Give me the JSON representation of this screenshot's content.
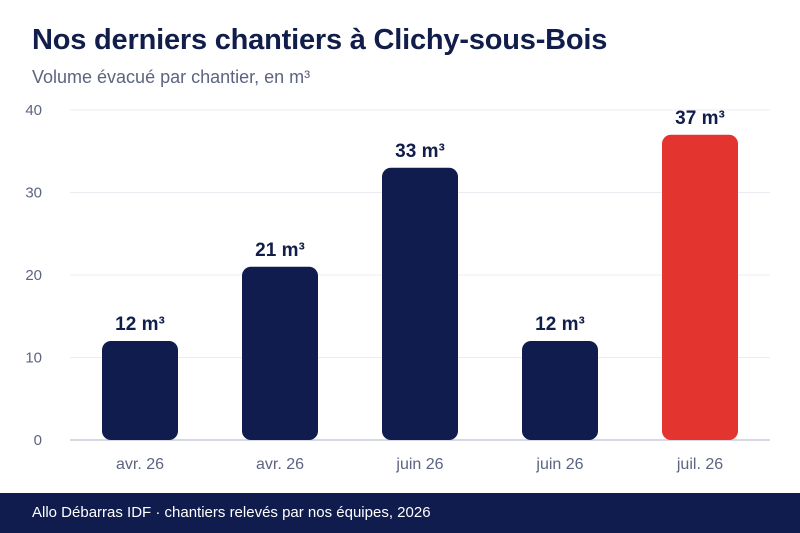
{
  "title": "Nos derniers chantiers à Clichy-sous-Bois",
  "subtitle": "Volume évacué par chantier, en m³",
  "footer": "Allo Débarras IDF · chantiers relevés par nos équipes, 2026",
  "chart_data": {
    "type": "bar",
    "categories": [
      "avr. 26",
      "avr. 26",
      "juin 26",
      "juin 26",
      "juil. 26"
    ],
    "values": [
      12,
      21,
      33,
      12,
      37
    ],
    "value_labels": [
      "12 m³",
      "21 m³",
      "33 m³",
      "12 m³",
      "37 m³"
    ],
    "highlight_index": 4,
    "yticks": [
      "0",
      "10",
      "20",
      "30",
      "40"
    ],
    "ylim": [
      0,
      40
    ],
    "grid": true,
    "colors": {
      "bar": "#0f1c4d",
      "highlight": "#e3342f",
      "grid": "#ececf2",
      "axis": "#c9cbd8",
      "tick": "#5c6480",
      "label": "#111d4a"
    }
  }
}
